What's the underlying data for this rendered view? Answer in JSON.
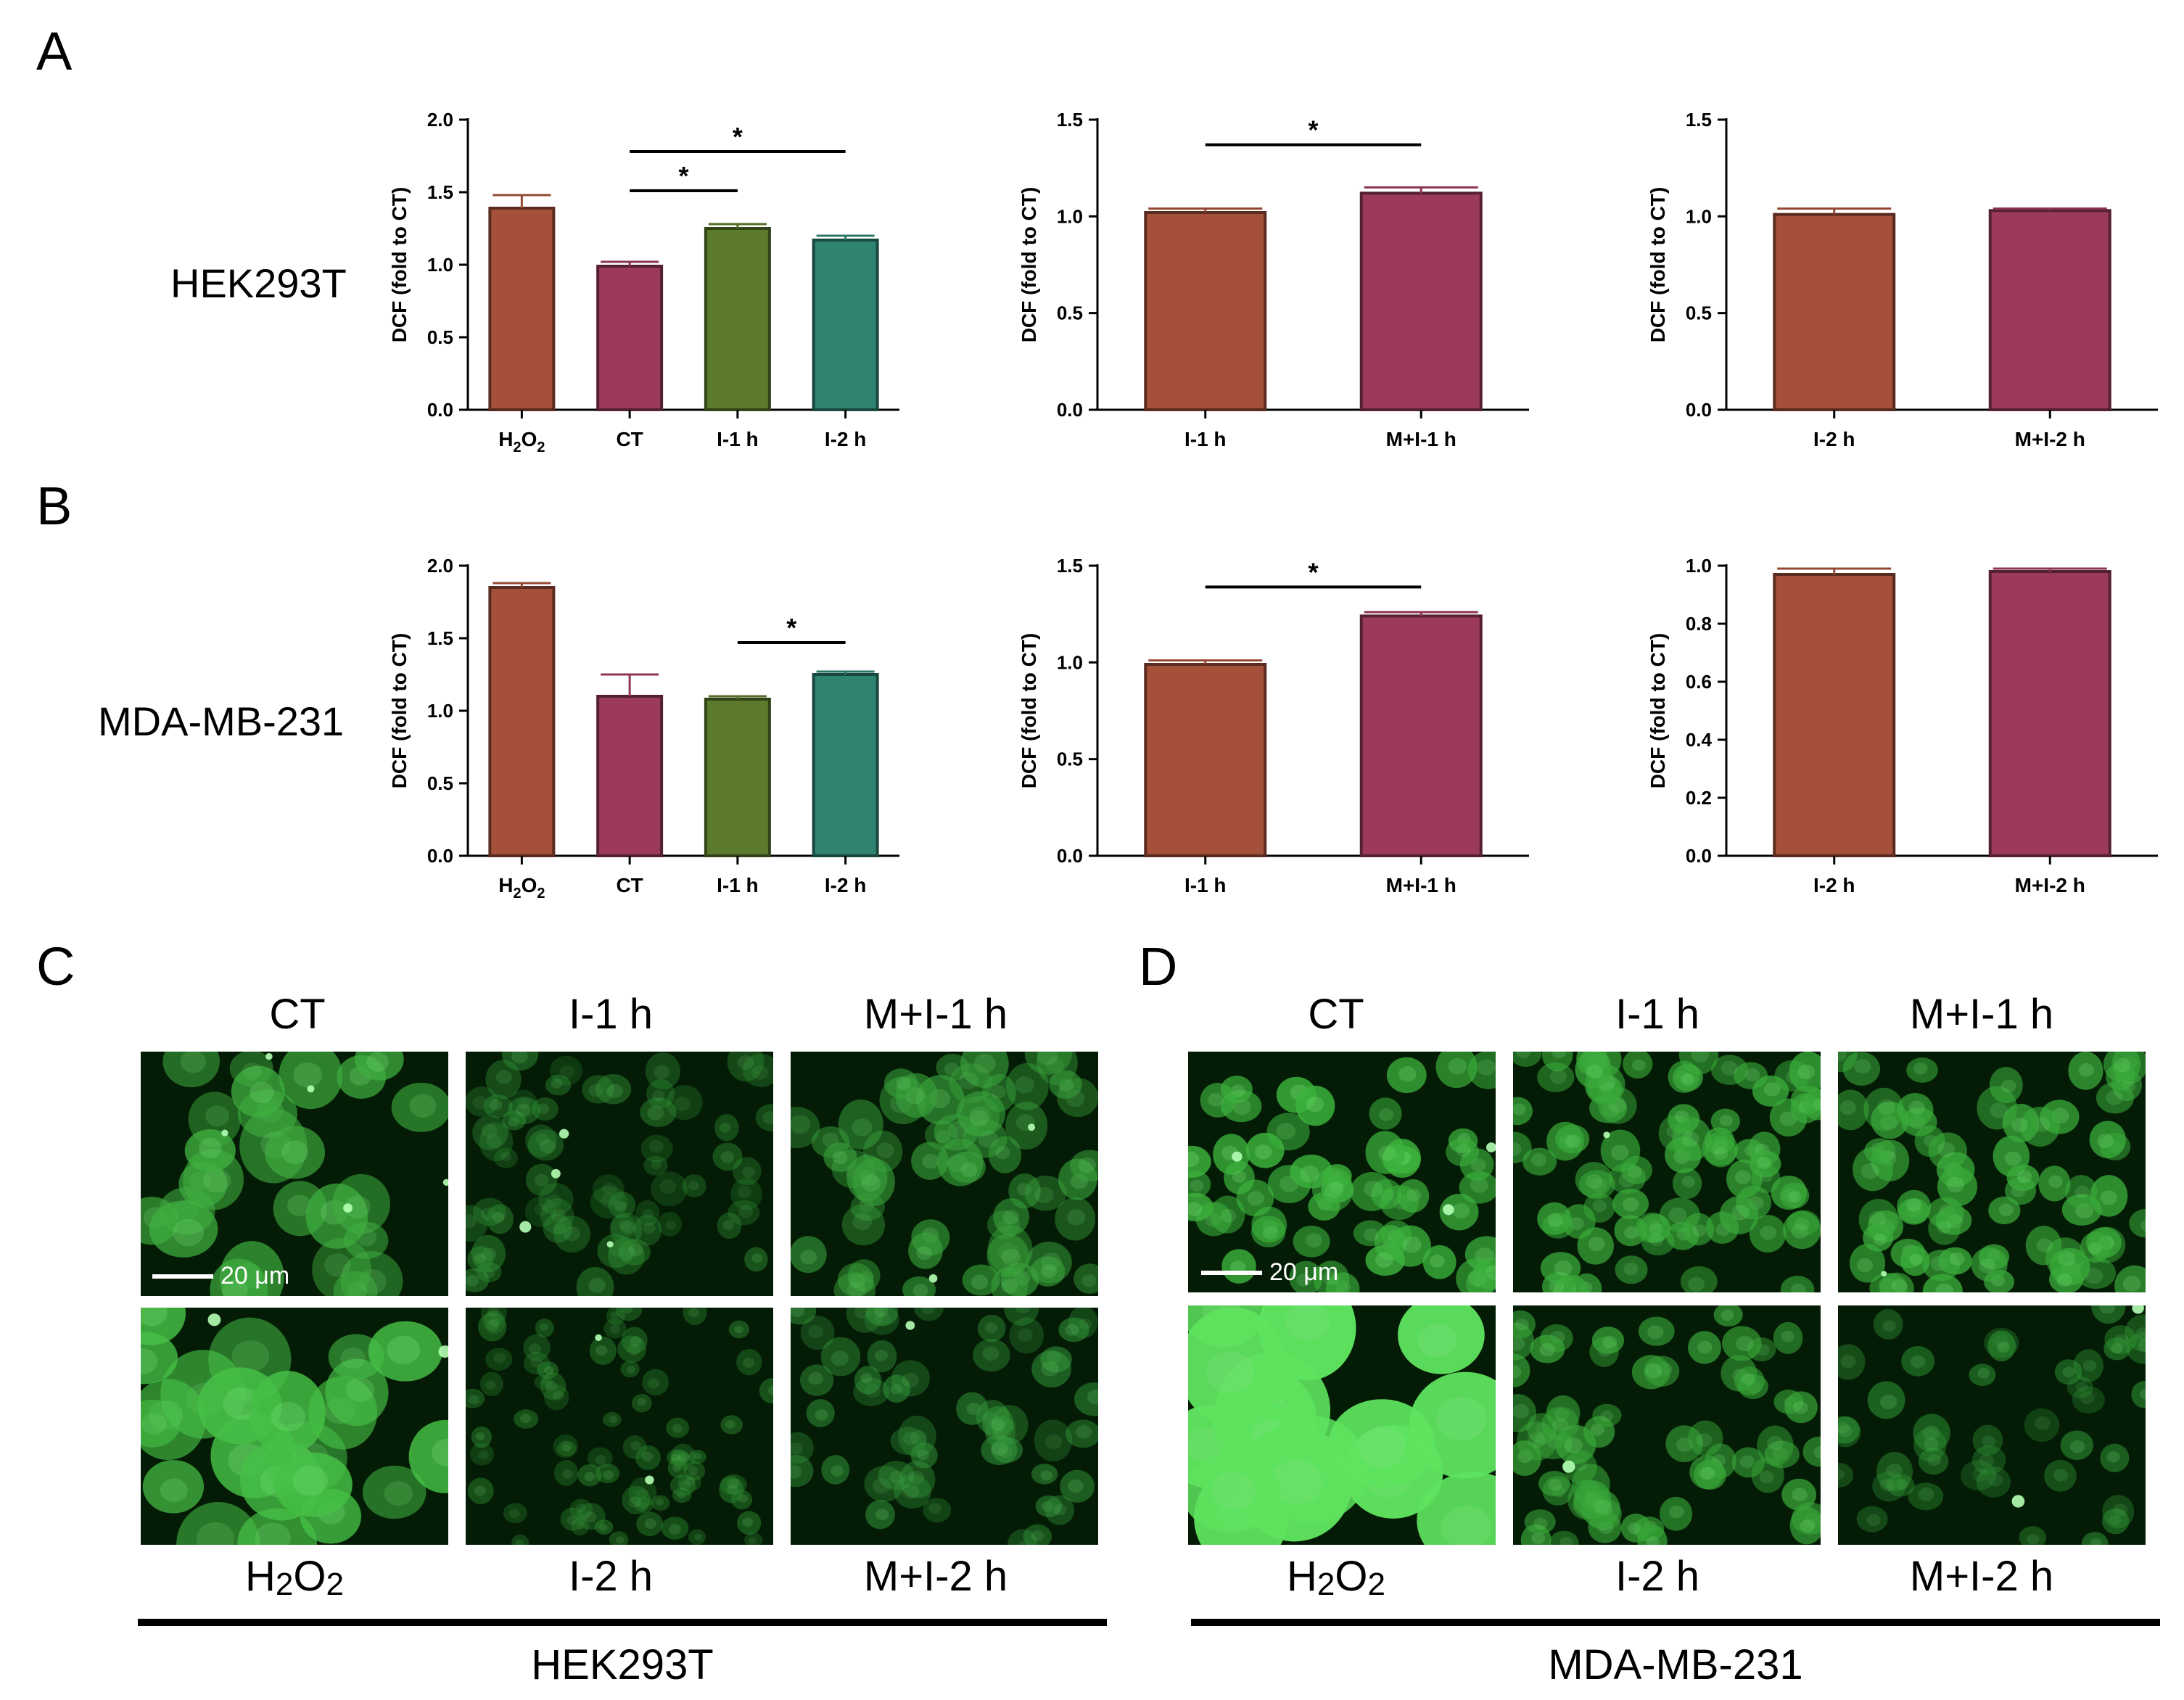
{
  "panels": {
    "A": {
      "letter": "A",
      "row_label": "HEK293T",
      "charts": [
        {
          "type": "bar",
          "ylabel": "DCF (fold to CT)",
          "ylim": [
            0,
            2.0
          ],
          "yticks": [
            "0.0",
            "0.5",
            "1.0",
            "1.5",
            "2.0"
          ],
          "categories": [
            {
              "main": "H",
              "sub1": "2",
              "mid": "O",
              "sub2": "2"
            },
            {
              "main": "CT"
            },
            {
              "main": "I-1 h"
            },
            {
              "main": "I-2 h"
            }
          ],
          "values": [
            1.39,
            0.99,
            1.25,
            1.17
          ],
          "errors": [
            0.09,
            0.03,
            0.03,
            0.03
          ],
          "colors": [
            "#a4503a",
            "#9b3a5d",
            "#5b7a2b",
            "#2e8471"
          ],
          "significance": [
            {
              "from": 1,
              "to": 2,
              "label": "*",
              "y": 1.51
            },
            {
              "from": 1,
              "to": 3,
              "label": "*",
              "y": 1.78
            }
          ]
        },
        {
          "type": "bar",
          "ylabel": "DCF (fold to CT)",
          "ylim": [
            0,
            1.5
          ],
          "yticks": [
            "0.0",
            "0.5",
            "1.0",
            "1.5"
          ],
          "categories": [
            {
              "main": "I-1 h"
            },
            {
              "main": "M+I-1 h"
            }
          ],
          "values": [
            1.02,
            1.12
          ],
          "errors": [
            0.02,
            0.03
          ],
          "colors": [
            "#a4503a",
            "#9b3a5d"
          ],
          "significance": [
            {
              "from": 0,
              "to": 1,
              "label": "*",
              "y": 1.37
            }
          ]
        },
        {
          "type": "bar",
          "ylabel": "DCF (fold to CT)",
          "ylim": [
            0,
            1.5
          ],
          "yticks": [
            "0.0",
            "0.5",
            "1.0",
            "1.5"
          ],
          "categories": [
            {
              "main": "I-2 h"
            },
            {
              "main": "M+I-2 h"
            }
          ],
          "values": [
            1.01,
            1.03
          ],
          "errors": [
            0.03,
            0.01
          ],
          "colors": [
            "#a4503a",
            "#9b3a5d"
          ],
          "significance": []
        }
      ]
    },
    "B": {
      "letter": "B",
      "row_label": "MDA-MB-231",
      "charts": [
        {
          "type": "bar",
          "ylabel": "DCF (fold to CT)",
          "ylim": [
            0,
            2.0
          ],
          "yticks": [
            "0.0",
            "0.5",
            "1.0",
            "1.5",
            "2.0"
          ],
          "categories": [
            {
              "main": "H",
              "sub1": "2",
              "mid": "O",
              "sub2": "2"
            },
            {
              "main": "CT"
            },
            {
              "main": "I-1 h"
            },
            {
              "main": "I-2 h"
            }
          ],
          "values": [
            1.85,
            1.1,
            1.08,
            1.25
          ],
          "errors": [
            0.03,
            0.15,
            0.02,
            0.02
          ],
          "colors": [
            "#a4503a",
            "#9b3a5d",
            "#5b7a2b",
            "#2e8471"
          ],
          "significance": [
            {
              "from": 2,
              "to": 3,
              "label": "*",
              "y": 1.47
            }
          ]
        },
        {
          "type": "bar",
          "ylabel": "DCF (fold to CT)",
          "ylim": [
            0,
            1.5
          ],
          "yticks": [
            "0.0",
            "0.5",
            "1.0",
            "1.5"
          ],
          "categories": [
            {
              "main": "I-1 h"
            },
            {
              "main": "M+I-1 h"
            }
          ],
          "values": [
            0.99,
            1.24
          ],
          "errors": [
            0.02,
            0.02
          ],
          "colors": [
            "#a4503a",
            "#9b3a5d"
          ],
          "significance": [
            {
              "from": 0,
              "to": 1,
              "label": "*",
              "y": 1.39
            }
          ]
        },
        {
          "type": "bar",
          "ylabel": "DCF (fold to CT)",
          "ylim": [
            0,
            1.0
          ],
          "yticks": [
            "0.0",
            "0.2",
            "0.4",
            "0.6",
            "0.8",
            "1.0"
          ],
          "categories": [
            {
              "main": "I-2 h"
            },
            {
              "main": "M+I-2 h"
            }
          ],
          "values": [
            0.97,
            0.98
          ],
          "errors": [
            0.02,
            0.01
          ],
          "colors": [
            "#a4503a",
            "#9b3a5d"
          ],
          "significance": []
        }
      ]
    },
    "C": {
      "letter": "C",
      "col_headers": [
        "CT",
        "I-1 h",
        "M+I-1 h"
      ],
      "bottom_labels": [
        {
          "main": "H",
          "s1": "2",
          "mid": "O",
          "s2": "2"
        },
        {
          "main": "I-2 h"
        },
        {
          "main": "M+I-2 h"
        }
      ],
      "group_name": "HEK293T",
      "scale_label": "20 μm"
    },
    "D": {
      "letter": "D",
      "col_headers": [
        "CT",
        "I-1 h",
        "M+I-1 h"
      ],
      "bottom_labels": [
        {
          "main": "H",
          "s1": "2",
          "mid": "O",
          "s2": "2"
        },
        {
          "main": "I-2 h"
        },
        {
          "main": "M+I-2 h"
        }
      ],
      "group_name": "MDA-MB-231",
      "scale_label": "20 μm"
    }
  }
}
